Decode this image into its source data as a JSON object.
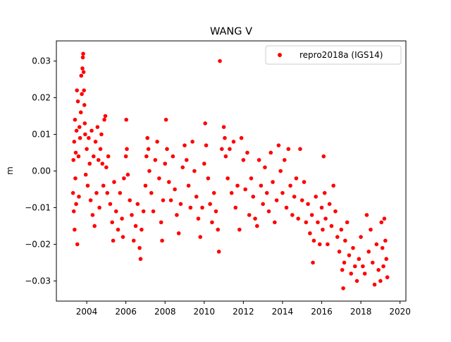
{
  "chart_data": {
    "type": "scatter",
    "title": "WANG V",
    "xlabel": "",
    "ylabel": "m",
    "xlim": [
      2002.45,
      2020.3
    ],
    "ylim": [
      -0.0355,
      0.0355
    ],
    "x_ticks": [
      2004,
      2006,
      2008,
      2010,
      2012,
      2014,
      2016,
      2018,
      2020
    ],
    "y_ticks": [
      -0.03,
      -0.02,
      -0.01,
      0.0,
      0.01,
      0.02,
      0.03
    ],
    "x_tick_labels": [
      "2004",
      "2006",
      "2008",
      "2010",
      "2012",
      "2014",
      "2016",
      "2018",
      "2020"
    ],
    "y_tick_labels": [
      "−0.03",
      "−0.02",
      "−0.01",
      "0.00",
      "0.01",
      "0.02",
      "0.03"
    ],
    "grid": false,
    "legend": {
      "position": "top-right",
      "entries": [
        "repro2018a (IGS14)"
      ]
    },
    "series": [
      {
        "name": "repro2018a (IGS14)",
        "color": "#ff0000",
        "marker": "circle",
        "points": [
          [
            2003.3,
            -0.006
          ],
          [
            2003.32,
            0.003
          ],
          [
            2003.34,
            -0.011
          ],
          [
            2003.36,
            0.008
          ],
          [
            2003.38,
            -0.016
          ],
          [
            2003.4,
            0.014
          ],
          [
            2003.42,
            -0.002
          ],
          [
            2003.44,
            0.005
          ],
          [
            2003.46,
            -0.009
          ],
          [
            2003.48,
            0.011
          ],
          [
            2003.5,
            0.022
          ],
          [
            2003.52,
            -0.02
          ],
          [
            2003.55,
            0.019
          ],
          [
            2003.58,
            0.004
          ],
          [
            2003.6,
            -0.007
          ],
          [
            2003.63,
            0.012
          ],
          [
            2003.66,
            0.009
          ],
          [
            2003.7,
            0.016
          ],
          [
            2003.72,
            0.026
          ],
          [
            2003.75,
            0.021
          ],
          [
            2003.78,
            0.028
          ],
          [
            2003.8,
            0.031
          ],
          [
            2003.82,
            0.032
          ],
          [
            2003.84,
            0.027
          ],
          [
            2003.86,
            0.022
          ],
          [
            2003.88,
            0.018
          ],
          [
            2003.9,
            0.013
          ],
          [
            2003.92,
            0.01
          ],
          [
            2003.95,
            -0.001
          ],
          [
            2004.0,
            0.006
          ],
          [
            2004.05,
            -0.004
          ],
          [
            2004.1,
            0.009
          ],
          [
            2004.15,
            0.002
          ],
          [
            2004.2,
            -0.008
          ],
          [
            2004.25,
            0.011
          ],
          [
            2004.3,
            -0.012
          ],
          [
            2004.35,
            0.004
          ],
          [
            2004.4,
            -0.015
          ],
          [
            2004.45,
            0.008
          ],
          [
            2004.5,
            -0.006
          ],
          [
            2004.55,
            0.012
          ],
          [
            2004.6,
            0.003
          ],
          [
            2004.65,
            -0.01
          ],
          [
            2004.7,
            0.006
          ],
          [
            2004.75,
            0.01
          ],
          [
            2004.8,
            0.002
          ],
          [
            2004.85,
            -0.004
          ],
          [
            2004.9,
            0.014
          ],
          [
            2004.95,
            0.015
          ],
          [
            2005.0,
            0.001
          ],
          [
            2005.05,
            -0.006
          ],
          [
            2005.1,
            0.004
          ],
          [
            2005.2,
            -0.009
          ],
          [
            2005.3,
            -0.014
          ],
          [
            2005.35,
            -0.019
          ],
          [
            2005.4,
            -0.003
          ],
          [
            2005.5,
            -0.011
          ],
          [
            2005.6,
            -0.016
          ],
          [
            2005.7,
            -0.006
          ],
          [
            2005.8,
            -0.013
          ],
          [
            2005.85,
            -0.018
          ],
          [
            2005.9,
            -0.002
          ],
          [
            2006.0,
            0.004
          ],
          [
            2006.02,
            0.014
          ],
          [
            2006.05,
            0.006
          ],
          [
            2006.1,
            -0.001
          ],
          [
            2006.2,
            -0.008
          ],
          [
            2006.3,
            -0.012
          ],
          [
            2006.4,
            -0.019
          ],
          [
            2006.5,
            -0.015
          ],
          [
            2006.6,
            -0.009
          ],
          [
            2006.7,
            -0.021
          ],
          [
            2006.75,
            -0.024
          ],
          [
            2006.8,
            -0.016
          ],
          [
            2006.9,
            -0.011
          ],
          [
            2007.0,
            -0.004
          ],
          [
            2007.05,
            0.004
          ],
          [
            2007.1,
            0.009
          ],
          [
            2007.15,
            0.006
          ],
          [
            2007.2,
            0.0
          ],
          [
            2007.3,
            -0.006
          ],
          [
            2007.4,
            -0.011
          ],
          [
            2007.5,
            0.003
          ],
          [
            2007.6,
            0.008
          ],
          [
            2007.7,
            -0.002
          ],
          [
            2007.8,
            -0.014
          ],
          [
            2007.85,
            -0.019
          ],
          [
            2007.9,
            -0.008
          ],
          [
            2008.0,
            0.002
          ],
          [
            2008.05,
            0.014
          ],
          [
            2008.1,
            0.006
          ],
          [
            2008.2,
            -0.003
          ],
          [
            2008.3,
            -0.008
          ],
          [
            2008.4,
            0.004
          ],
          [
            2008.5,
            -0.005
          ],
          [
            2008.6,
            -0.012
          ],
          [
            2008.7,
            -0.017
          ],
          [
            2008.8,
            -0.009
          ],
          [
            2008.9,
            0.001
          ],
          [
            2009.0,
            0.007
          ],
          [
            2009.1,
            0.003
          ],
          [
            2009.2,
            -0.004
          ],
          [
            2009.3,
            -0.01
          ],
          [
            2009.4,
            0.008
          ],
          [
            2009.5,
            0.0
          ],
          [
            2009.6,
            -0.007
          ],
          [
            2009.7,
            -0.013
          ],
          [
            2009.8,
            -0.018
          ],
          [
            2009.9,
            -0.01
          ],
          [
            2010.0,
            0.002
          ],
          [
            2010.05,
            0.013
          ],
          [
            2010.1,
            0.007
          ],
          [
            2010.2,
            -0.002
          ],
          [
            2010.3,
            -0.009
          ],
          [
            2010.4,
            -0.014
          ],
          [
            2010.5,
            -0.006
          ],
          [
            2010.6,
            -0.011
          ],
          [
            2010.7,
            -0.016
          ],
          [
            2010.75,
            -0.022
          ],
          [
            2010.8,
            0.03
          ],
          [
            2010.9,
            0.006
          ],
          [
            2011.0,
            0.012
          ],
          [
            2011.05,
            0.009
          ],
          [
            2011.1,
            0.004
          ],
          [
            2011.2,
            -0.002
          ],
          [
            2011.3,
            0.006
          ],
          [
            2011.4,
            -0.006
          ],
          [
            2011.5,
            0.008
          ],
          [
            2011.6,
            -0.01
          ],
          [
            2011.7,
            -0.004
          ],
          [
            2011.8,
            -0.016
          ],
          [
            2011.9,
            0.009
          ],
          [
            2012.0,
            0.003
          ],
          [
            2012.1,
            -0.005
          ],
          [
            2012.2,
            0.005
          ],
          [
            2012.3,
            -0.012
          ],
          [
            2012.4,
            -0.002
          ],
          [
            2012.5,
            -0.007
          ],
          [
            2012.6,
            -0.013
          ],
          [
            2012.7,
            -0.015
          ],
          [
            2012.8,
            0.003
          ],
          [
            2012.9,
            -0.004
          ],
          [
            2013.0,
            -0.009
          ],
          [
            2013.1,
            0.001
          ],
          [
            2013.2,
            -0.006
          ],
          [
            2013.3,
            -0.011
          ],
          [
            2013.4,
            0.005
          ],
          [
            2013.5,
            -0.003
          ],
          [
            2013.6,
            -0.014
          ],
          [
            2013.7,
            -0.008
          ],
          [
            2013.8,
            0.007
          ],
          [
            2013.9,
            0.0
          ],
          [
            2014.0,
            -0.006
          ],
          [
            2014.1,
            0.003
          ],
          [
            2014.2,
            -0.01
          ],
          [
            2014.3,
            0.006
          ],
          [
            2014.4,
            -0.004
          ],
          [
            2014.5,
            -0.012
          ],
          [
            2014.6,
            -0.007
          ],
          [
            2014.7,
            -0.002
          ],
          [
            2014.8,
            -0.013
          ],
          [
            2014.9,
            0.006
          ],
          [
            2015.0,
            -0.008
          ],
          [
            2015.1,
            -0.003
          ],
          [
            2015.2,
            -0.014
          ],
          [
            2015.3,
            -0.009
          ],
          [
            2015.4,
            -0.017
          ],
          [
            2015.5,
            -0.012
          ],
          [
            2015.55,
            -0.025
          ],
          [
            2015.6,
            -0.019
          ],
          [
            2015.7,
            -0.007
          ],
          [
            2015.8,
            -0.014
          ],
          [
            2015.9,
            -0.02
          ],
          [
            2016.0,
            -0.01
          ],
          [
            2016.05,
            -0.016
          ],
          [
            2016.1,
            0.004
          ],
          [
            2016.15,
            -0.006
          ],
          [
            2016.2,
            -0.013
          ],
          [
            2016.3,
            -0.02
          ],
          [
            2016.4,
            -0.009
          ],
          [
            2016.5,
            -0.015
          ],
          [
            2016.6,
            -0.004
          ],
          [
            2016.7,
            -0.011
          ],
          [
            2016.8,
            -0.018
          ],
          [
            2016.9,
            -0.022
          ],
          [
            2017.0,
            -0.016
          ],
          [
            2017.05,
            -0.027
          ],
          [
            2017.1,
            -0.032
          ],
          [
            2017.15,
            -0.025
          ],
          [
            2017.2,
            -0.019
          ],
          [
            2017.3,
            -0.014
          ],
          [
            2017.4,
            -0.023
          ],
          [
            2017.5,
            -0.028
          ],
          [
            2017.6,
            -0.021
          ],
          [
            2017.7,
            -0.026
          ],
          [
            2017.8,
            -0.03
          ],
          [
            2017.9,
            -0.024
          ],
          [
            2018.0,
            -0.018
          ],
          [
            2018.1,
            -0.026
          ],
          [
            2018.2,
            -0.028
          ],
          [
            2018.3,
            -0.012
          ],
          [
            2018.4,
            -0.022
          ],
          [
            2018.5,
            -0.016
          ],
          [
            2018.6,
            -0.025
          ],
          [
            2018.7,
            -0.031
          ],
          [
            2018.8,
            -0.02
          ],
          [
            2018.9,
            -0.027
          ],
          [
            2019.0,
            -0.03
          ],
          [
            2019.05,
            -0.014
          ],
          [
            2019.1,
            -0.021
          ],
          [
            2019.15,
            -0.026
          ],
          [
            2019.2,
            -0.013
          ],
          [
            2019.25,
            -0.019
          ],
          [
            2019.3,
            -0.024
          ],
          [
            2019.35,
            -0.029
          ]
        ]
      }
    ]
  }
}
